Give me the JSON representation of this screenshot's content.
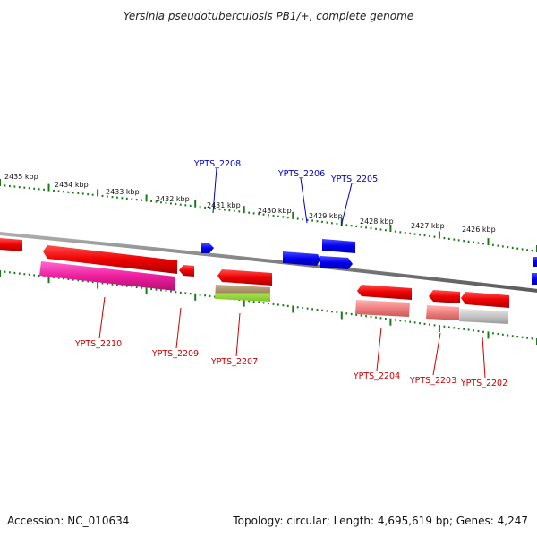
{
  "title": "Yersinia pseudotuberculosis PB1/+, complete genome",
  "footer": {
    "accession": "Accession: NC_010634",
    "summary": "Topology: circular; Length: 4,695,619 bp; Genes: 4,247"
  },
  "colors": {
    "forward_label": "#0000cc",
    "reverse_label": "#cc0000",
    "forward_gene": "#0000ee",
    "reverse_gene": "#ee0000",
    "scale_tick": "#1a7a1a",
    "backbone": "#808080"
  },
  "scale_labels": [
    "2435 kbp",
    "2434 kbp",
    "2433 kbp",
    "2432 kbp",
    "2431 kbp",
    "2430 kbp",
    "2429 kbp",
    "2428 kbp",
    "2427 kbp",
    "2426 kbp"
  ],
  "gene_labels": {
    "forward": [
      "YPTS_2208",
      "YPTS_2206",
      "YPTS_2205"
    ],
    "reverse": [
      "YPTS_2210",
      "YPTS_2209",
      "YPTS_2207",
      "YPTS_2204",
      "YPTS_2203",
      "YPTS_2202"
    ]
  }
}
